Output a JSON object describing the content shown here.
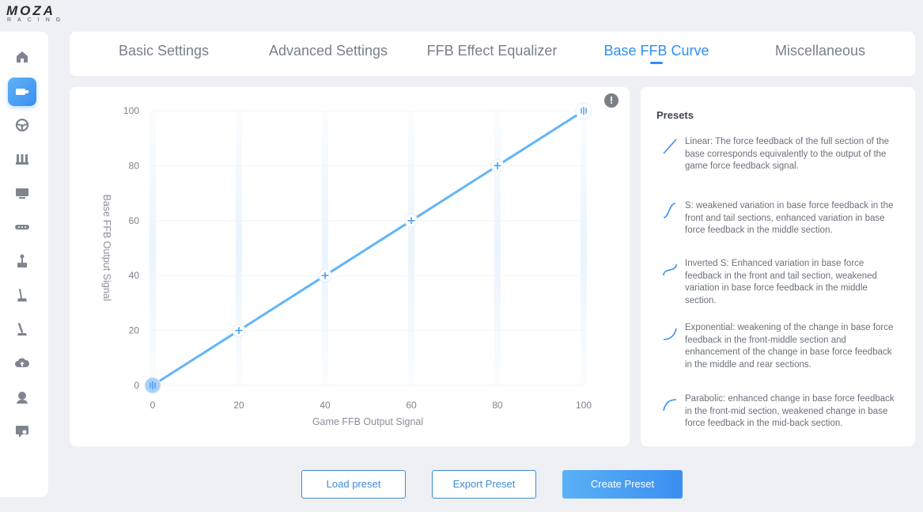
{
  "app": {
    "logo_main": "MOZA",
    "logo_sub": "RACING"
  },
  "sidebar": {
    "items": [
      {
        "name": "home-icon",
        "active": false
      },
      {
        "name": "wheelbase-icon",
        "active": true
      },
      {
        "name": "steering-wheel-icon",
        "active": false
      },
      {
        "name": "pedals-icon",
        "active": false
      },
      {
        "name": "dashboard-icon",
        "active": false
      },
      {
        "name": "button-box-icon",
        "active": false
      },
      {
        "name": "joystick-icon",
        "active": false
      },
      {
        "name": "shifter-icon",
        "active": false
      },
      {
        "name": "handbrake-icon",
        "active": false
      },
      {
        "name": "cloud-icon",
        "active": false
      },
      {
        "name": "user-icon",
        "active": false
      },
      {
        "name": "support-icon",
        "active": false
      }
    ]
  },
  "tabs": [
    {
      "label": "Basic Settings",
      "active": false
    },
    {
      "label": "Advanced Settings",
      "active": false
    },
    {
      "label": "FFB Effect Equalizer",
      "active": false
    },
    {
      "label": "Base FFB Curve",
      "active": true
    },
    {
      "label": "Miscellaneous",
      "active": false
    }
  ],
  "chart": {
    "info_label": "!"
  },
  "chart_data": {
    "type": "line",
    "xlabel": "Game FFB Output Signal",
    "ylabel": "Base FFB Output Signal",
    "xlim": [
      0,
      100
    ],
    "ylim": [
      0,
      100
    ],
    "x_ticks": [
      "0",
      "20",
      "40",
      "60",
      "80",
      "100"
    ],
    "y_ticks": [
      "0",
      "20",
      "40",
      "60",
      "80",
      "100"
    ],
    "x": [
      0,
      20,
      40,
      60,
      80,
      100
    ],
    "y": [
      0,
      20,
      40,
      60,
      80,
      100
    ],
    "line_color": "#64b5f6",
    "point_color": "#4a9ef0",
    "grid": true
  },
  "presets": {
    "title": "Presets",
    "items": [
      {
        "text": "Linear: The force feedback of the full section of the base corresponds equivalently to the output of the game force feedback signal.",
        "icon": "linear-curve-icon"
      },
      {
        "text": "S: weakened variation in base force feedback in the front and tail sections, enhanced variation in base force feedback in the middle section.",
        "icon": "s-curve-icon"
      },
      {
        "text": "Inverted S: Enhanced variation in base force feedback in the front and tail section, weakened variation in base force feedback in the middle section.",
        "icon": "inverted-s-curve-icon"
      },
      {
        "text": "Exponential: weakening of the change in base force feedback in the front-middle section and enhancement of the change in base force feedback in the middle and rear sections.",
        "icon": "exponential-curve-icon"
      },
      {
        "text": "Parabolic: enhanced change in base force feedback in the front-mid section, weakened change in base force feedback in the mid-back section.",
        "icon": "parabolic-curve-icon"
      }
    ]
  },
  "buttons": {
    "load": "Load preset",
    "export": "Export Preset",
    "create": "Create Preset"
  },
  "colors": {
    "accent": "#2f8ef4",
    "preset_icon": "#3a8ef0"
  }
}
